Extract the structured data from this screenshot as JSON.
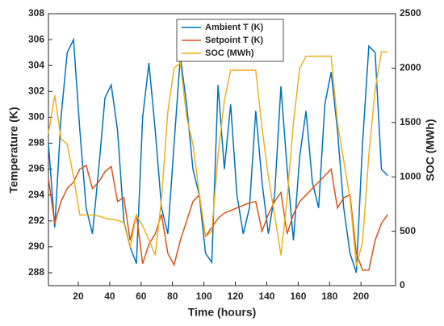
{
  "chart_data": {
    "type": "line",
    "x_label": "Time (hours)",
    "y_label": "Temperature (K)",
    "y2_label": "SOC (MWh)",
    "x": [
      1,
      5,
      9,
      13,
      17,
      21,
      25,
      29,
      33,
      37,
      41,
      45,
      49,
      53,
      57,
      61,
      65,
      69,
      73,
      77,
      81,
      85,
      89,
      93,
      97,
      101,
      105,
      109,
      113,
      117,
      121,
      125,
      129,
      133,
      137,
      141,
      145,
      149,
      153,
      157,
      161,
      165,
      169,
      173,
      177,
      181,
      185,
      189,
      193,
      197,
      201,
      205,
      209,
      213,
      217
    ],
    "series": [
      {
        "name": "Ambient T (K)",
        "color": "#0072BD",
        "values": [
          298,
          291.5,
          300,
          305,
          306,
          299,
          293,
          291,
          296,
          301.5,
          302.5,
          299,
          292,
          290,
          288.7,
          300,
          304.2,
          299,
          293,
          291,
          298,
          304.7,
          301,
          296,
          294,
          289.5,
          288.8,
          302.5,
          296,
          301,
          294,
          291,
          293,
          300.5,
          295,
          291,
          294,
          302.4,
          296,
          290.5,
          297,
          300.5,
          295,
          293,
          301,
          303.5,
          299,
          293,
          289.5,
          288,
          298,
          305.5,
          305,
          296,
          295.5
        ]
      },
      {
        "name": "Setpoint T (K)",
        "color": "#D95319",
        "values": [
          295.3,
          291.8,
          293.5,
          294.5,
          295,
          296,
          296.3,
          294.5,
          295,
          295.8,
          296.2,
          293.5,
          293.8,
          290.5,
          292.5,
          288.7,
          290.2,
          291,
          292.5,
          289.5,
          288.6,
          290.5,
          292,
          293.5,
          294,
          290.8,
          291.5,
          292.2,
          292.6,
          292.8,
          293,
          293.2,
          293.4,
          293.5,
          291.2,
          292.5,
          293.5,
          294.2,
          291,
          292.5,
          293.5,
          294,
          294.5,
          295,
          295.5,
          296,
          293,
          293.8,
          294,
          289.5,
          288.2,
          288.2,
          290.5,
          291.8,
          292.5
        ]
      },
      {
        "name": "SOC (MWh)",
        "color": "#EDB120",
        "axis": "y2",
        "values": [
          1400,
          1750,
          1350,
          1300,
          1000,
          650,
          650,
          650,
          640,
          620,
          610,
          600,
          580,
          350,
          650,
          550,
          420,
          280,
          800,
          1600,
          2000,
          2050,
          1550,
          1300,
          850,
          450,
          500,
          1200,
          1700,
          1980,
          1980,
          1980,
          1980,
          1980,
          1450,
          1000,
          650,
          280,
          800,
          1500,
          2000,
          2110,
          2110,
          2110,
          2110,
          2110,
          1500,
          1150,
          800,
          180,
          400,
          1200,
          1800,
          2150,
          2150
        ]
      }
    ],
    "xlim": [
      1,
      222
    ],
    "xticks": [
      20,
      40,
      60,
      80,
      100,
      120,
      140,
      160,
      180,
      200
    ],
    "ylim": [
      287,
      308
    ],
    "yticks": [
      288,
      290,
      292,
      294,
      296,
      298,
      300,
      302,
      304,
      306,
      308
    ],
    "y2lim": [
      0,
      2500
    ],
    "y2ticks": [
      0,
      500,
      1000,
      1500,
      2000,
      2500
    ],
    "legend": "top"
  }
}
